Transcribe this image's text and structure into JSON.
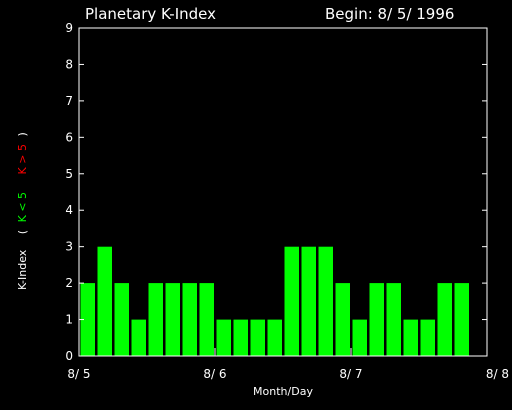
{
  "chart_data": {
    "type": "bar",
    "title": "Planetary K-Index",
    "begin_label": "Begin: 8/ 5/ 1996",
    "xlabel": "Month/Day",
    "ylabel": {
      "prefix": "K-Index",
      "open": "(",
      "low": "K < 5",
      "high": "K > 5",
      "close": ")"
    },
    "ylim": [
      0,
      9
    ],
    "yticks": [
      "0",
      "1",
      "2",
      "3",
      "4",
      "5",
      "6",
      "7",
      "8",
      "9"
    ],
    "x_tick_labels": [
      "8/ 5",
      "8/ 6",
      "8/ 7",
      "8/ 8"
    ],
    "grid": false,
    "values": [
      2,
      3,
      2,
      1,
      2,
      2,
      2,
      2,
      1,
      1,
      1,
      1,
      3,
      3,
      3,
      2,
      1,
      2,
      2,
      1,
      1,
      2,
      2
    ],
    "colors": {
      "background": "#000000",
      "axes": "#ffffff",
      "bar_low": "#00ff00",
      "bar_high": "#ff0000",
      "low_label": "#00ff00",
      "high_label": "#ff0000"
    }
  }
}
